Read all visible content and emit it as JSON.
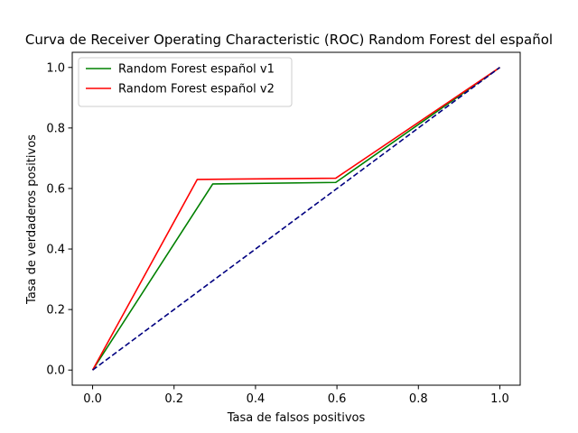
{
  "chart_data": {
    "type": "line",
    "title": "Curva de Receiver Operating Characteristic (ROC) Random Forest del español",
    "xlabel": "Tasa de falsos positivos",
    "ylabel": "Tasa de verdaderos positivos",
    "xlim": [
      -0.05,
      1.05
    ],
    "ylim": [
      -0.05,
      1.05
    ],
    "xticks": [
      0.0,
      0.2,
      0.4,
      0.6,
      0.8,
      1.0
    ],
    "yticks": [
      0.0,
      0.2,
      0.4,
      0.6,
      0.8,
      1.0
    ],
    "xtick_labels": [
      "0.0",
      "0.2",
      "0.4",
      "0.6",
      "0.8",
      "1.0"
    ],
    "ytick_labels": [
      "0.0",
      "0.2",
      "0.4",
      "0.6",
      "0.8",
      "1.0"
    ],
    "grid": false,
    "legend_position": "upper left",
    "series": [
      {
        "name": "Random Forest español v1",
        "color": "#008000",
        "style": "solid",
        "x": [
          0.0,
          0.295,
          0.597,
          1.0
        ],
        "y": [
          0.0,
          0.615,
          0.62,
          1.0
        ]
      },
      {
        "name": "Random Forest español v2",
        "color": "#ff0000",
        "style": "solid",
        "x": [
          0.0,
          0.257,
          0.597,
          1.0
        ],
        "y": [
          0.0,
          0.63,
          0.634,
          1.0
        ]
      },
      {
        "color": "#000080",
        "style": "dashed",
        "x": [
          0.0,
          1.0
        ],
        "y": [
          0.0,
          1.0
        ]
      }
    ]
  }
}
